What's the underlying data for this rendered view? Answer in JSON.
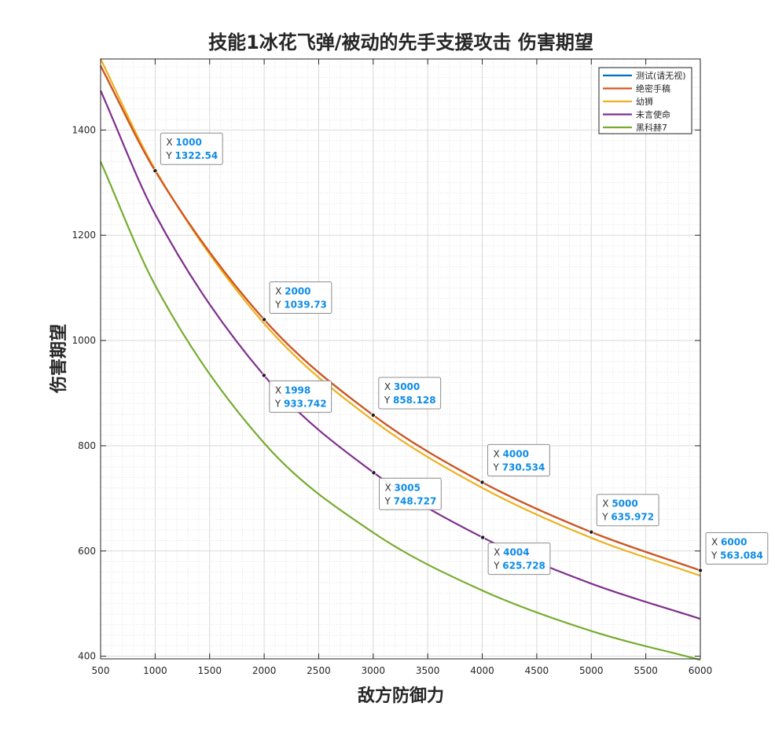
{
  "chart_data": {
    "type": "line",
    "title": "技能1冰花飞弹/被动的先手支援攻击 伤害期望",
    "xlabel": "敌方防御力",
    "ylabel": "伤害期望",
    "xlim": [
      500,
      6000
    ],
    "ylim": [
      395,
      1535
    ],
    "xticks": [
      500,
      1000,
      1500,
      2000,
      2500,
      3000,
      3500,
      4000,
      4500,
      5000,
      5500,
      6000
    ],
    "yticks": [
      400,
      600,
      800,
      1000,
      1200,
      1400
    ],
    "grid": true,
    "minor_grid": true,
    "legend_position": "top-right",
    "series": [
      {
        "name": "测试(请无视)",
        "color": "#0072bd",
        "x": [
          500,
          1000,
          2000,
          3000,
          4000,
          5000,
          6000
        ],
        "y": [
          1522,
          1322.54,
          1039.73,
          858.128,
          730.534,
          635.972,
          563.084
        ]
      },
      {
        "name": "绝密手稿",
        "color": "#d95319",
        "x": [
          500,
          1000,
          2000,
          3000,
          4000,
          5000,
          6000
        ],
        "y": [
          1522,
          1322.54,
          1039.73,
          858.128,
          730.534,
          635.972,
          563.084
        ]
      },
      {
        "name": "幼狮",
        "color": "#edb120",
        "x": [
          500,
          1000,
          2000,
          3000,
          4000,
          5000,
          6000
        ],
        "y": [
          1535,
          1325,
          1032,
          848,
          720,
          625,
          553
        ]
      },
      {
        "name": "未言使命",
        "color": "#7e2f8e",
        "x": [
          500,
          1000,
          1998,
          3005,
          4004,
          5000,
          6000
        ],
        "y": [
          1475,
          1240,
          933.742,
          748.727,
          625.728,
          538,
          471
        ]
      },
      {
        "name": "黑科赫7",
        "color": "#77ac30",
        "x": [
          500,
          1000,
          2000,
          3000,
          4000,
          5000,
          6000
        ],
        "y": [
          1340,
          1105,
          805,
          635,
          525,
          448,
          393
        ]
      }
    ],
    "annotations": [
      {
        "x": 1000,
        "y": 1322.54,
        "x_text": "1000",
        "y_text": "1322.54",
        "series": 1
      },
      {
        "x": 2000,
        "y": 1039.73,
        "x_text": "2000",
        "y_text": "1039.73",
        "series": 1
      },
      {
        "x": 1998,
        "y": 933.742,
        "x_text": "1998",
        "y_text": "933.742",
        "series": 3
      },
      {
        "x": 3000,
        "y": 858.128,
        "x_text": "3000",
        "y_text": "858.128",
        "series": 1
      },
      {
        "x": 3005,
        "y": 748.727,
        "x_text": "3005",
        "y_text": "748.727",
        "series": 3
      },
      {
        "x": 4000,
        "y": 730.534,
        "x_text": "4000",
        "y_text": "730.534",
        "series": 1
      },
      {
        "x": 4004,
        "y": 625.728,
        "x_text": "4004",
        "y_text": "625.728",
        "series": 3
      },
      {
        "x": 5000,
        "y": 635.972,
        "x_text": "5000",
        "y_text": "635.972",
        "series": 1
      },
      {
        "x": 6000,
        "y": 563.084,
        "x_text": "6000",
        "y_text": "563.084",
        "series": 1
      }
    ],
    "datatip_x_key": "X",
    "datatip_y_key": "Y"
  }
}
